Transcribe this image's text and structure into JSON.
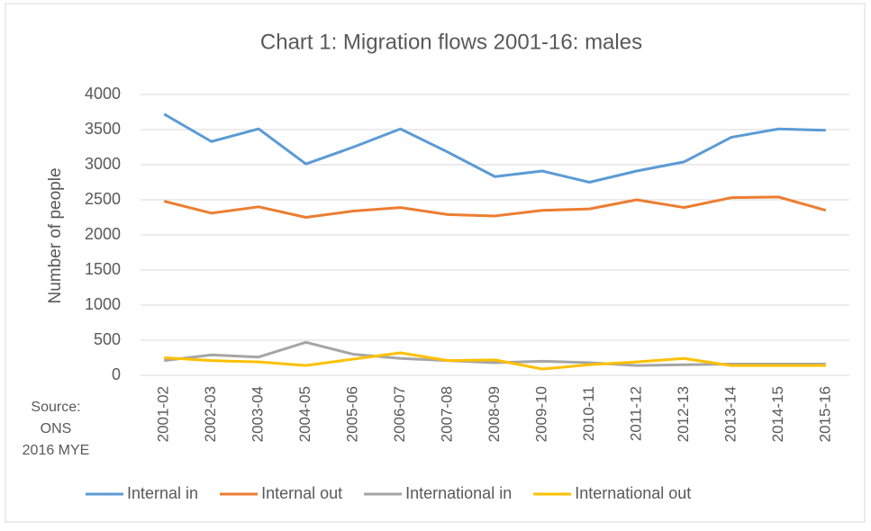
{
  "chart_data": {
    "type": "line",
    "title": "Chart 1: Migration flows 2001-16: males",
    "y_label": "Number of people",
    "source": [
      "Source:",
      "ONS",
      "2016 MYE"
    ],
    "categories": [
      "2001-02",
      "2002-03",
      "2003-04",
      "2004-05",
      "2005-06",
      "2006-07",
      "2007-08",
      "2008-09",
      "2009-10",
      "2010-11",
      "2011-12",
      "2012-13",
      "2013-14",
      "2014-15",
      "2015-16"
    ],
    "series": [
      {
        "name": "Internal in",
        "color": "#5b9bd5",
        "values": [
          3720,
          3330,
          3510,
          3010,
          3250,
          3510,
          3180,
          2830,
          2910,
          2750,
          2910,
          3040,
          3390,
          3510,
          3490
        ]
      },
      {
        "name": "Internal out",
        "color": "#ed7d31",
        "values": [
          2480,
          2310,
          2400,
          2250,
          2340,
          2390,
          2290,
          2270,
          2350,
          2370,
          2500,
          2390,
          2530,
          2540,
          2350
        ]
      },
      {
        "name": "International in",
        "color": "#a5a5a5",
        "values": [
          210,
          290,
          260,
          470,
          300,
          240,
          210,
          180,
          200,
          180,
          140,
          150,
          160,
          160,
          160
        ]
      },
      {
        "name": "International out",
        "color": "#ffc000",
        "values": [
          250,
          210,
          190,
          140,
          230,
          320,
          210,
          220,
          90,
          150,
          190,
          240,
          140,
          140,
          140
        ]
      }
    ],
    "ylim": [
      0,
      4000
    ],
    "yticks": [
      0,
      500,
      1000,
      1500,
      2000,
      2500,
      3000,
      3500,
      4000
    ],
    "grid": true,
    "legend": "bottom"
  }
}
